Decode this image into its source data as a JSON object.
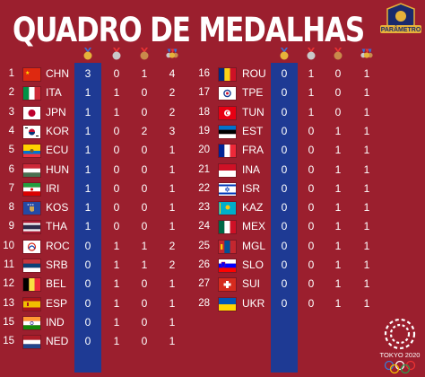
{
  "title": "QUADRO DE MEDALHAS",
  "brand": "PARÂMETRO",
  "event": "TOKYO 2020",
  "colors": {
    "background": "#9b1f2e",
    "gold_column": "#1e3a94",
    "gold": "#e6b23a",
    "silver": "#c9c9c9",
    "bronze": "#c98a4b"
  },
  "header_icons": [
    "gold-medal-icon",
    "silver-medal-icon",
    "bronze-medal-icon",
    "total-medals-icon"
  ],
  "left": [
    {
      "rank": "1",
      "code": "CHN",
      "gold": "3",
      "silver": "0",
      "bronze": "1",
      "total": "4",
      "flag": "china"
    },
    {
      "rank": "2",
      "code": "ITA",
      "gold": "1",
      "silver": "1",
      "bronze": "0",
      "total": "2",
      "flag": "italy"
    },
    {
      "rank": "3",
      "code": "JPN",
      "gold": "1",
      "silver": "1",
      "bronze": "0",
      "total": "2",
      "flag": "japan"
    },
    {
      "rank": "4",
      "code": "KOR",
      "gold": "1",
      "silver": "0",
      "bronze": "2",
      "total": "3",
      "flag": "korea"
    },
    {
      "rank": "5",
      "code": "ECU",
      "gold": "1",
      "silver": "0",
      "bronze": "0",
      "total": "1",
      "flag": "ecuador"
    },
    {
      "rank": "6",
      "code": "HUN",
      "gold": "1",
      "silver": "0",
      "bronze": "0",
      "total": "1",
      "flag": "hungary"
    },
    {
      "rank": "7",
      "code": "IRI",
      "gold": "1",
      "silver": "0",
      "bronze": "0",
      "total": "1",
      "flag": "iran"
    },
    {
      "rank": "8",
      "code": "KOS",
      "gold": "1",
      "silver": "0",
      "bronze": "0",
      "total": "1",
      "flag": "kosovo"
    },
    {
      "rank": "9",
      "code": "THA",
      "gold": "1",
      "silver": "0",
      "bronze": "0",
      "total": "1",
      "flag": "thailand"
    },
    {
      "rank": "10",
      "code": "ROC",
      "gold": "0",
      "silver": "1",
      "bronze": "1",
      "total": "2",
      "flag": "roc"
    },
    {
      "rank": "11",
      "code": "SRB",
      "gold": "0",
      "silver": "1",
      "bronze": "1",
      "total": "2",
      "flag": "serbia"
    },
    {
      "rank": "12",
      "code": "BEL",
      "gold": "0",
      "silver": "1",
      "bronze": "0",
      "total": "1",
      "flag": "belgium"
    },
    {
      "rank": "13",
      "code": "ESP",
      "gold": "0",
      "silver": "1",
      "bronze": "0",
      "total": "1",
      "flag": "spain"
    },
    {
      "rank": "15",
      "code": "IND",
      "gold": "0",
      "silver": "1",
      "bronze": "0",
      "total": "1",
      "flag": "india"
    },
    {
      "rank": "15",
      "code": "NED",
      "gold": "0",
      "silver": "1",
      "bronze": "0",
      "total": "1",
      "flag": "netherlands"
    }
  ],
  "right": [
    {
      "rank": "16",
      "code": "ROU",
      "gold": "0",
      "silver": "1",
      "bronze": "0",
      "total": "1",
      "flag": "romania"
    },
    {
      "rank": "17",
      "code": "TPE",
      "gold": "0",
      "silver": "1",
      "bronze": "0",
      "total": "1",
      "flag": "taipei"
    },
    {
      "rank": "18",
      "code": "TUN",
      "gold": "0",
      "silver": "1",
      "bronze": "0",
      "total": "1",
      "flag": "tunisia"
    },
    {
      "rank": "19",
      "code": "EST",
      "gold": "0",
      "silver": "0",
      "bronze": "1",
      "total": "1",
      "flag": "estonia"
    },
    {
      "rank": "20",
      "code": "FRA",
      "gold": "0",
      "silver": "0",
      "bronze": "1",
      "total": "1",
      "flag": "france"
    },
    {
      "rank": "21",
      "code": "INA",
      "gold": "0",
      "silver": "0",
      "bronze": "1",
      "total": "1",
      "flag": "indonesia"
    },
    {
      "rank": "22",
      "code": "ISR",
      "gold": "0",
      "silver": "0",
      "bronze": "1",
      "total": "1",
      "flag": "israel"
    },
    {
      "rank": "23",
      "code": "KAZ",
      "gold": "0",
      "silver": "0",
      "bronze": "1",
      "total": "1",
      "flag": "kazakhstan"
    },
    {
      "rank": "24",
      "code": "MEX",
      "gold": "0",
      "silver": "0",
      "bronze": "1",
      "total": "1",
      "flag": "mexico"
    },
    {
      "rank": "25",
      "code": "MGL",
      "gold": "0",
      "silver": "0",
      "bronze": "1",
      "total": "1",
      "flag": "mongolia"
    },
    {
      "rank": "26",
      "code": "SLO",
      "gold": "0",
      "silver": "0",
      "bronze": "1",
      "total": "1",
      "flag": "slovenia"
    },
    {
      "rank": "27",
      "code": "SUI",
      "gold": "0",
      "silver": "0",
      "bronze": "1",
      "total": "1",
      "flag": "switzerland"
    },
    {
      "rank": "28",
      "code": "UKR",
      "gold": "0",
      "silver": "0",
      "bronze": "1",
      "total": "1",
      "flag": "ukraine"
    }
  ]
}
